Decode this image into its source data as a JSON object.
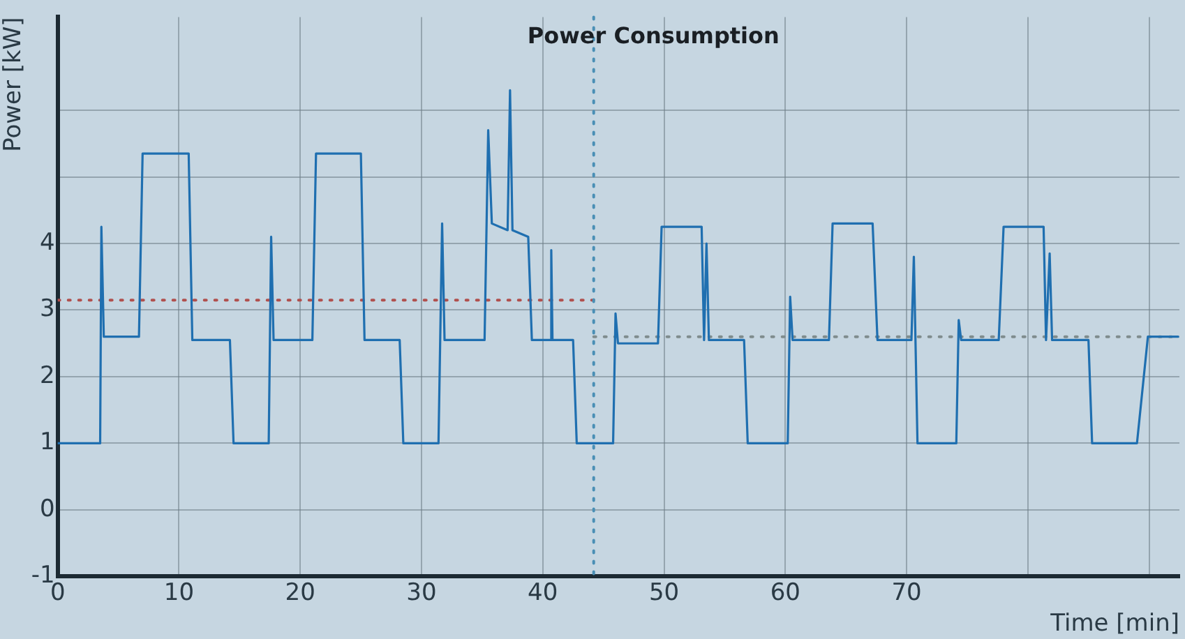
{
  "chart_data": {
    "type": "line",
    "title": "Power Consumption",
    "xlabel": "Time [min]",
    "ylabel": "Power [kW]",
    "xlim": [
      0,
      92.5
    ],
    "ylim": [
      -1,
      7.4
    ],
    "xticks": [
      0,
      10,
      20,
      30,
      40,
      50,
      60,
      70,
      {
        "value": 80,
        "label": null
      },
      {
        "value": 90,
        "label": null
      }
    ],
    "yticks": [
      -1,
      0,
      1,
      2,
      3,
      4,
      {
        "value": 5,
        "label": null
      },
      {
        "value": 6,
        "label": null
      }
    ],
    "grid": true,
    "legend": false,
    "marker": "none",
    "series": [
      {
        "color": "#1f6fb0",
        "line_style": "solid",
        "x": [
          0,
          3.5,
          3.6,
          3.8,
          6.7,
          7.0,
          10.8,
          11.1,
          14.2,
          14.5,
          17.4,
          17.6,
          17.8,
          21.0,
          21.3,
          25.0,
          25.3,
          28.2,
          28.5,
          31.4,
          31.7,
          31.9,
          35.2,
          35.5,
          35.8,
          37.1,
          37.3,
          37.5,
          38.8,
          39.1,
          40.6,
          40.7,
          40.8,
          42.5,
          42.8,
          45.8,
          46.0,
          46.2,
          49.5,
          49.8,
          53.1,
          53.3,
          53.5,
          53.7,
          56.6,
          56.9,
          60.2,
          60.4,
          60.6,
          63.6,
          63.9,
          67.2,
          67.6,
          70.4,
          70.6,
          70.9,
          74.1,
          74.3,
          74.5,
          77.6,
          78.0,
          81.3,
          81.5,
          81.8,
          82.0,
          85.0,
          85.3,
          89.0,
          89.9,
          92.4
        ],
        "values": [
          1.0,
          1.0,
          4.25,
          2.6,
          2.6,
          5.35,
          5.35,
          2.55,
          2.55,
          1.0,
          1.0,
          4.1,
          2.55,
          2.55,
          5.35,
          5.35,
          2.55,
          2.55,
          1.0,
          1.0,
          4.3,
          2.55,
          2.55,
          5.7,
          4.3,
          4.2,
          6.3,
          4.2,
          4.1,
          2.55,
          2.55,
          3.9,
          2.55,
          2.55,
          1.0,
          1.0,
          2.95,
          2.5,
          2.5,
          4.25,
          4.25,
          2.55,
          4.0,
          2.55,
          2.55,
          1.0,
          1.0,
          3.2,
          2.55,
          2.55,
          4.3,
          4.3,
          2.55,
          2.55,
          3.8,
          1.0,
          1.0,
          2.85,
          2.55,
          2.55,
          4.25,
          4.25,
          2.55,
          3.85,
          2.55,
          2.55,
          1.0,
          1.0,
          2.6,
          2.6
        ]
      },
      {
        "color": "#b0504e",
        "line_style": "dotted",
        "x": [
          0,
          44.2
        ],
        "values": [
          3.15,
          3.15
        ]
      },
      {
        "color": "#7f8c8d",
        "line_style": "dotted",
        "x": [
          44.2,
          92.4
        ],
        "values": [
          2.6,
          2.6
        ]
      }
    ],
    "ref_lines": [
      {
        "axis": "x",
        "value": 44.2,
        "label": null,
        "color": "#4a8fb5",
        "line_style": "dotted"
      }
    ]
  }
}
